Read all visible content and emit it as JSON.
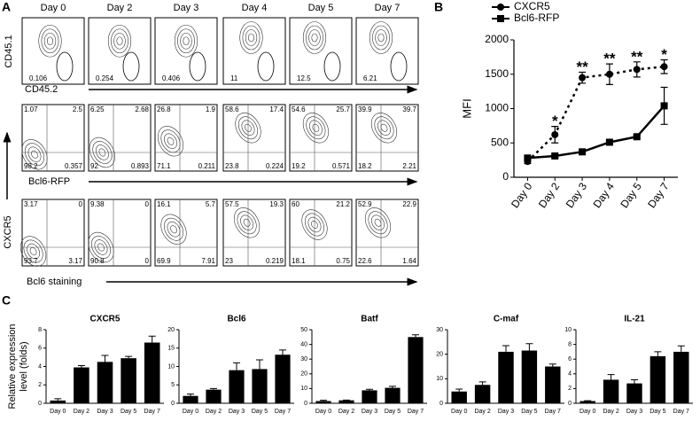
{
  "panel_labels": [
    "A",
    "B",
    "C"
  ],
  "flow": {
    "days": [
      "Day 0",
      "Day 2",
      "Day 3",
      "Day 4",
      "Day 5",
      "Day 7"
    ],
    "y_label_shared": "CXCR5",
    "rows": [
      {
        "y_label": "CD45.1",
        "x_label": "CD45.2",
        "values": [
          [
            0.106
          ],
          [
            0.254
          ],
          [
            0.406
          ],
          [
            11
          ],
          [
            12.5
          ],
          [
            6.21
          ]
        ]
      },
      {
        "x_label": "Bcl6-RFP",
        "values": [
          [
            1.07,
            2.5,
            98.2,
            0.357
          ],
          [
            6.25,
            2.68,
            92,
            0.893
          ],
          [
            26.8,
            1.9,
            71.1,
            0.211
          ],
          [
            58.6,
            17.4,
            23.8,
            0.224
          ],
          [
            54.6,
            25.7,
            19.2,
            0.571
          ],
          [
            39.9,
            39.7,
            18.2,
            2.21
          ]
        ]
      },
      {
        "x_label": "Bcl6 staining",
        "values": [
          [
            3.17,
            0,
            93.7,
            3.17
          ],
          [
            9.38,
            0,
            90.8,
            0
          ],
          [
            16.1,
            5.7,
            69.9,
            7.91
          ],
          [
            57.5,
            19.3,
            23,
            0.219
          ],
          [
            60,
            21.2,
            18.1,
            0.75
          ],
          [
            52.9,
            22.9,
            22.6,
            1.64
          ]
        ]
      }
    ]
  },
  "chart_data": [
    {
      "type": "line",
      "ylabel": "MFI",
      "categories": [
        "Day 0",
        "Day 2",
        "Day 3",
        "Day 4",
        "Day 5",
        "Day 7"
      ],
      "ylim": [
        0,
        2000
      ],
      "yticks": [
        0,
        500,
        1000,
        1500,
        2000
      ],
      "legend": "top-left",
      "annotations": [
        null,
        "*",
        "**",
        "**",
        "**",
        "*"
      ],
      "series": [
        {
          "name": "CXCR5",
          "color": "#000000",
          "style": "dotted",
          "marker": "circle",
          "values": [
            230,
            620,
            1450,
            1500,
            1570,
            1610
          ],
          "errors": [
            30,
            120,
            80,
            150,
            110,
            100
          ]
        },
        {
          "name": "Bcl6-RFP",
          "color": "#000000",
          "style": "solid",
          "marker": "square",
          "values": [
            280,
            310,
            370,
            510,
            590,
            1040
          ],
          "errors": [
            20,
            20,
            20,
            20,
            20,
            270
          ]
        }
      ]
    },
    {
      "type": "bar",
      "title": "CXCR5",
      "ylabel_lines": [
        "Relative expression",
        "level (folds)"
      ],
      "categories": [
        "Day 0",
        "Day 2",
        "Day 3",
        "Day 5",
        "Day 7"
      ],
      "color": "#000000",
      "values": [
        0.3,
        3.9,
        4.5,
        4.9,
        6.6
      ],
      "errors": [
        0.2,
        0.2,
        0.7,
        0.2,
        0.7
      ],
      "ylim": [
        0,
        8
      ],
      "yticks": [
        0,
        2,
        4,
        6,
        8
      ]
    },
    {
      "type": "bar",
      "title": "Bcl6",
      "categories": [
        "Day 0",
        "Day 2",
        "Day 3",
        "Day 5",
        "Day 7"
      ],
      "color": "#000000",
      "values": [
        2,
        3.7,
        9,
        9.3,
        13.2
      ],
      "errors": [
        0.5,
        0.3,
        2,
        2.5,
        1.3
      ],
      "ylim": [
        0,
        20
      ],
      "yticks": [
        0,
        5,
        10,
        15,
        20
      ]
    },
    {
      "type": "bar",
      "title": "Batf",
      "categories": [
        "Day 0",
        "Day 2",
        "Day 3",
        "Day 5",
        "Day 7"
      ],
      "color": "#000000",
      "values": [
        1.5,
        2,
        8.8,
        10.5,
        45
      ],
      "errors": [
        0.5,
        0.2,
        0.7,
        1,
        1.5
      ],
      "ylim": [
        0,
        50
      ],
      "yticks": [
        0,
        10,
        20,
        30,
        40,
        50
      ]
    },
    {
      "type": "bar",
      "title": "C-maf",
      "categories": [
        "Day 0",
        "Day 2",
        "Day 3",
        "Day 5",
        "Day 7"
      ],
      "color": "#000000",
      "values": [
        4.8,
        7.5,
        21,
        21.5,
        15
      ],
      "errors": [
        1,
        1.2,
        2.5,
        2.8,
        1
      ],
      "ylim": [
        0,
        30
      ],
      "yticks": [
        0,
        10,
        20,
        30
      ]
    },
    {
      "type": "bar",
      "title": "IL-21",
      "categories": [
        "Day 0",
        "Day 2",
        "Day 3",
        "Day 5",
        "Day 7"
      ],
      "color": "#000000",
      "values": [
        0.3,
        3.2,
        2.7,
        6.4,
        7
      ],
      "errors": [
        0.05,
        0.7,
        0.5,
        0.6,
        0.8
      ],
      "ylim": [
        0,
        10
      ],
      "yticks": [
        0,
        2,
        4,
        6,
        8,
        10
      ]
    }
  ]
}
